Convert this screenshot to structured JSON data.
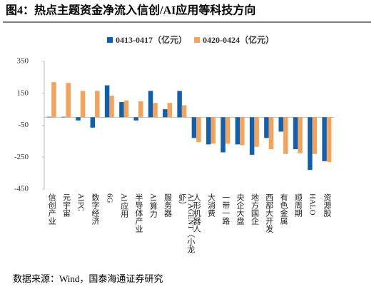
{
  "chart_data": {
    "type": "bar",
    "title": "图4：热点主题资金净流入信创/AI应用等科技方向",
    "source": "数据来源：Wind，国泰海通证券研究",
    "categories": [
      "信创产业",
      "元宇宙",
      "AIPC",
      "数字经济",
      "6G",
      "AI应用",
      "半导体产业",
      "AI算力",
      "服务器",
      "AI AGENT（小龙虾）",
      "人形机器人",
      "大消费",
      "一带一路",
      "央企大盘",
      "地方国企",
      "西部大开发",
      "有色金属",
      "顺周期",
      "HALO",
      "资源股"
    ],
    "series": [
      {
        "name": "0413-0417（亿元）",
        "color": "#1060b0",
        "values": [
          3,
          3,
          -20,
          -65,
          200,
          95,
          -20,
          165,
          50,
          165,
          -130,
          -170,
          -220,
          -170,
          -235,
          -130,
          -90,
          -200,
          -330,
          -275
        ]
      },
      {
        "name": "0420-0424（亿元）",
        "color": "#f5a35a",
        "values": [
          220,
          215,
          165,
          165,
          135,
          105,
          100,
          90,
          90,
          75,
          -155,
          -165,
          -165,
          -175,
          -185,
          -200,
          -230,
          -225,
          -230,
          -280
        ]
      }
    ],
    "ylim": [
      -450,
      350
    ],
    "yticks": [
      -450,
      -250,
      -50,
      150,
      350
    ],
    "grid": false
  }
}
